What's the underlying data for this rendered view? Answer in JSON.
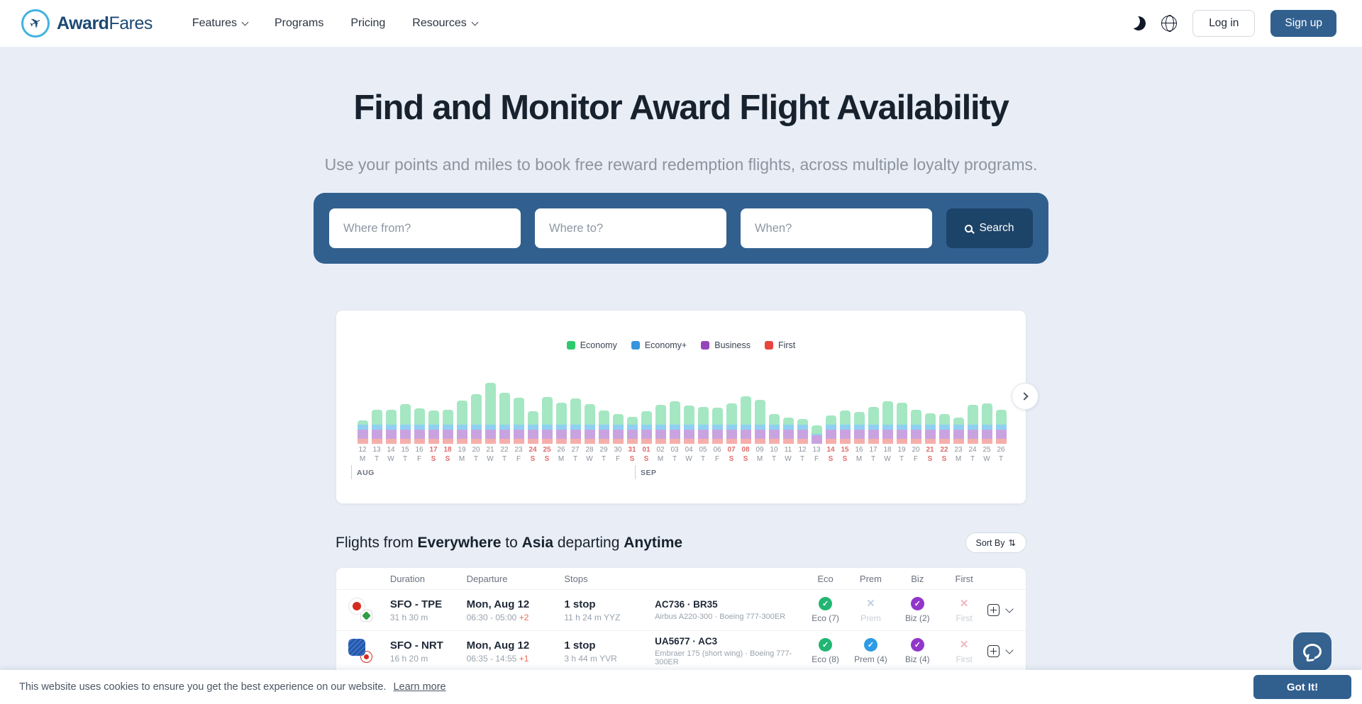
{
  "navbar": {
    "brand": {
      "bold": "Award",
      "light": "Fares"
    },
    "items": [
      {
        "label": "Features",
        "dropdown": true
      },
      {
        "label": "Programs",
        "dropdown": false
      },
      {
        "label": "Pricing",
        "dropdown": false
      },
      {
        "label": "Resources",
        "dropdown": true
      }
    ],
    "login_label": "Log in",
    "signup_label": "Sign up"
  },
  "hero": {
    "title": "Find and Monitor Award Flight Availability",
    "subtitle": "Use your points and miles to book free reward redemption flights, across multiple loyalty programs.",
    "search": {
      "from_placeholder": "Where from?",
      "to_placeholder": "Where to?",
      "when_placeholder": "When?",
      "button_label": "Search"
    }
  },
  "chart_data": {
    "type": "bar",
    "stacked": true,
    "unit": "relative award availability (px)",
    "legend_position": "top-center",
    "grid": false,
    "months": [
      {
        "label": "AUG",
        "start_index": 0
      },
      {
        "label": "SEP",
        "start_index": 20
      }
    ],
    "days": [
      {
        "d": "12",
        "w": "M",
        "we": false
      },
      {
        "d": "13",
        "w": "T",
        "we": false
      },
      {
        "d": "14",
        "w": "W",
        "we": false
      },
      {
        "d": "15",
        "w": "T",
        "we": false
      },
      {
        "d": "16",
        "w": "F",
        "we": false
      },
      {
        "d": "17",
        "w": "S",
        "we": true
      },
      {
        "d": "18",
        "w": "S",
        "we": true
      },
      {
        "d": "19",
        "w": "M",
        "we": false
      },
      {
        "d": "20",
        "w": "T",
        "we": false
      },
      {
        "d": "21",
        "w": "W",
        "we": false
      },
      {
        "d": "22",
        "w": "T",
        "we": false
      },
      {
        "d": "23",
        "w": "F",
        "we": false
      },
      {
        "d": "24",
        "w": "S",
        "we": true
      },
      {
        "d": "25",
        "w": "S",
        "we": true
      },
      {
        "d": "26",
        "w": "M",
        "we": false
      },
      {
        "d": "27",
        "w": "T",
        "we": false
      },
      {
        "d": "28",
        "w": "W",
        "we": false
      },
      {
        "d": "29",
        "w": "T",
        "we": false
      },
      {
        "d": "30",
        "w": "F",
        "we": false
      },
      {
        "d": "31",
        "w": "S",
        "we": true
      },
      {
        "d": "01",
        "w": "S",
        "we": true
      },
      {
        "d": "02",
        "w": "M",
        "we": false
      },
      {
        "d": "03",
        "w": "T",
        "we": false
      },
      {
        "d": "04",
        "w": "W",
        "we": false
      },
      {
        "d": "05",
        "w": "T",
        "we": false
      },
      {
        "d": "06",
        "w": "F",
        "we": false
      },
      {
        "d": "07",
        "w": "S",
        "we": true
      },
      {
        "d": "08",
        "w": "S",
        "we": true
      },
      {
        "d": "09",
        "w": "M",
        "we": false
      },
      {
        "d": "10",
        "w": "T",
        "we": false
      },
      {
        "d": "11",
        "w": "W",
        "we": false
      },
      {
        "d": "12",
        "w": "T",
        "we": false
      },
      {
        "d": "13",
        "w": "F",
        "we": false
      },
      {
        "d": "14",
        "w": "S",
        "we": true
      },
      {
        "d": "15",
        "w": "S",
        "we": true
      },
      {
        "d": "16",
        "w": "M",
        "we": false
      },
      {
        "d": "17",
        "w": "T",
        "we": false
      },
      {
        "d": "18",
        "w": "W",
        "we": false
      },
      {
        "d": "19",
        "w": "T",
        "we": false
      },
      {
        "d": "20",
        "w": "F",
        "we": false
      },
      {
        "d": "21",
        "w": "S",
        "we": true
      },
      {
        "d": "22",
        "w": "S",
        "we": true
      },
      {
        "d": "23",
        "w": "M",
        "we": false
      },
      {
        "d": "24",
        "w": "T",
        "we": false
      },
      {
        "d": "25",
        "w": "W",
        "we": false
      },
      {
        "d": "26",
        "w": "T",
        "we": false
      }
    ],
    "series": [
      {
        "name": "Economy",
        "legend_color": "#2fc96f",
        "bar_color": "#a5e7c2",
        "values": [
          6,
          21,
          21,
          29,
          23,
          20,
          21,
          34,
          43,
          59,
          45,
          38,
          19,
          39,
          31,
          37,
          29,
          20,
          15,
          11,
          19,
          28,
          33,
          27,
          25,
          24,
          30,
          40,
          35,
          15,
          10,
          8,
          12,
          13,
          20,
          18,
          25,
          33,
          31,
          21,
          16,
          15,
          10,
          28,
          30,
          21
        ]
      },
      {
        "name": "Economy+",
        "legend_color": "#3596dd",
        "bar_color": "#8fd0f2",
        "values": [
          7,
          7,
          7,
          7,
          7,
          7,
          7,
          7,
          7,
          7,
          7,
          7,
          7,
          7,
          7,
          7,
          7,
          7,
          7,
          7,
          7,
          7,
          7,
          7,
          7,
          7,
          7,
          7,
          7,
          7,
          7,
          7,
          2,
          7,
          7,
          7,
          7,
          7,
          7,
          7,
          7,
          7,
          7,
          7,
          7,
          7
        ]
      },
      {
        "name": "Business",
        "legend_color": "#9547ba",
        "bar_color": "#c9a3e0",
        "values": [
          13,
          13,
          13,
          13,
          13,
          13,
          13,
          13,
          13,
          13,
          13,
          13,
          13,
          13,
          13,
          13,
          13,
          13,
          13,
          13,
          13,
          13,
          13,
          13,
          13,
          13,
          13,
          13,
          13,
          13,
          13,
          13,
          12,
          13,
          13,
          13,
          13,
          13,
          13,
          13,
          13,
          13,
          13,
          13,
          13,
          13
        ]
      },
      {
        "name": "First",
        "legend_color": "#e8453c",
        "bar_color": "#f6aeaa",
        "values": [
          7,
          7,
          7,
          7,
          7,
          7,
          7,
          7,
          7,
          7,
          7,
          7,
          7,
          7,
          7,
          7,
          7,
          7,
          7,
          7,
          7,
          7,
          7,
          7,
          7,
          7,
          7,
          7,
          7,
          7,
          7,
          7,
          0,
          7,
          7,
          7,
          7,
          7,
          7,
          7,
          7,
          7,
          7,
          7,
          7,
          7
        ]
      }
    ]
  },
  "results": {
    "heading_segments": [
      {
        "text": "Flights from ",
        "bold": false
      },
      {
        "text": "Everywhere",
        "bold": true
      },
      {
        "text": " to ",
        "bold": false
      },
      {
        "text": "Asia",
        "bold": true
      },
      {
        "text": " departing ",
        "bold": false
      },
      {
        "text": "Anytime",
        "bold": true
      }
    ],
    "sort_label": "Sort By",
    "sort_icon": "⇅",
    "table": {
      "headers": [
        "Duration",
        "Departure",
        "Stops",
        "Eco",
        "Prem",
        "Biz",
        "First"
      ],
      "rows": [
        {
          "airlines": [
            "Air Canada",
            "EVA Air"
          ],
          "route": "SFO - TPE",
          "duration": "31 h 30 m",
          "date": "Mon, Aug 12",
          "times": "06:30 - 05:00",
          "day_offset": "+2",
          "stops": "1 stop",
          "layover": "11 h 24 m YYZ",
          "flights": "AC736 · BR35",
          "aircraft": "Airbus A220-300 · Boeing 777-300ER",
          "classes": [
            {
              "label": "Eco (7)",
              "state": "ok",
              "color": "#22b573"
            },
            {
              "label": "Prem",
              "state": "na",
              "color": "#c3d2e2"
            },
            {
              "label": "Biz (2)",
              "state": "ok",
              "color": "#9136c9"
            },
            {
              "label": "First",
              "state": "na",
              "color": "#f2b8bd"
            }
          ]
        },
        {
          "airlines": [
            "United",
            "Air Canada"
          ],
          "route": "SFO - NRT",
          "duration": "16 h 20 m",
          "date": "Mon, Aug 12",
          "times": "06:35 - 14:55",
          "day_offset": "+1",
          "stops": "1 stop",
          "layover": "3 h 44 m YVR",
          "flights": "UA5677 · AC3",
          "aircraft": "Embraer 175 (short wing) · Boeing 777-300ER",
          "classes": [
            {
              "label": "Eco (8)",
              "state": "ok",
              "color": "#22b573"
            },
            {
              "label": "Prem (4)",
              "state": "ok",
              "color": "#2e9be4"
            },
            {
              "label": "Biz (4)",
              "state": "ok",
              "color": "#9136c9"
            },
            {
              "label": "First",
              "state": "na",
              "color": "#f2b8bd"
            }
          ]
        }
      ]
    }
  },
  "cookie_banner": {
    "text": "This website uses cookies to ensure you get the best experience on our website.",
    "link_label": "Learn more",
    "button_label": "Got It!"
  },
  "colors": {
    "accent_blue": "#31608f",
    "search_button": "#1c4368",
    "page_bg": "#e9eef6",
    "weekend_red": "#e06c6c"
  }
}
